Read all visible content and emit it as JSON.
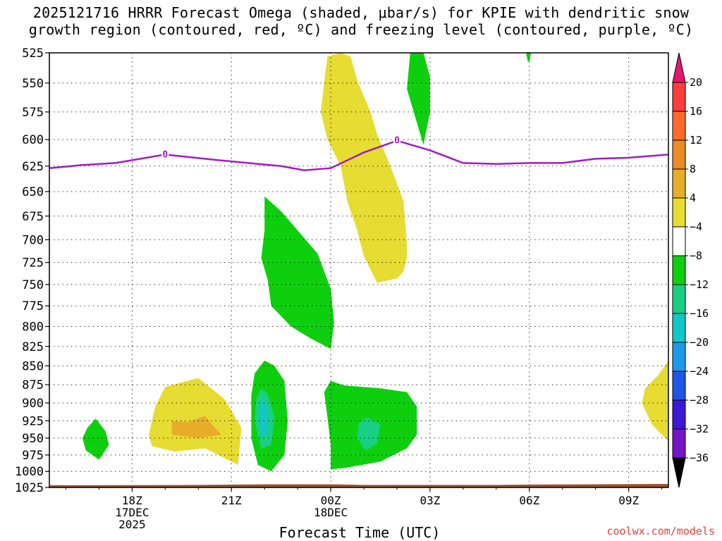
{
  "title_line1": "2025121716 HRRR Forecast Omega (shaded, μbar/s) for KPIE with dendritic snow",
  "title_line2": "growth region (contoured, red, ºC) and freezing level (contoured, purple, ºC)",
  "credit": "coolwx.com/models",
  "chart_data": {
    "type": "heatmap",
    "title": "2025121716 HRRR Forecast Omega (shaded, μbar/s) for KPIE with dendritic snow growth region (contoured, red, ºC) and freezing level (contoured, purple, ºC)",
    "xlabel": "Forecast Time (UTC)",
    "ylabel": "",
    "y_scale": "log-pressure (inverted)",
    "xlim_hours_after_00Z_17DEC": [
      15.5,
      34.2
    ],
    "ylim_hPa": [
      1025,
      525
    ],
    "grid": true,
    "y_ticks": [
      525,
      550,
      575,
      600,
      625,
      650,
      675,
      700,
      725,
      750,
      775,
      800,
      825,
      850,
      875,
      900,
      925,
      950,
      975,
      1000,
      1025
    ],
    "x_ticks": [
      {
        "hour": 18,
        "lines": [
          "18Z",
          "17DEC",
          "2025"
        ]
      },
      {
        "hour": 21,
        "lines": [
          "21Z"
        ]
      },
      {
        "hour": 24,
        "lines": [
          "00Z",
          "18DEC"
        ]
      },
      {
        "hour": 27,
        "lines": [
          "03Z"
        ]
      },
      {
        "hour": 30,
        "lines": [
          "06Z"
        ]
      },
      {
        "hour": 33,
        "lines": [
          "09Z"
        ]
      }
    ],
    "colorbar": {
      "labels": [
        "20",
        "16",
        "12",
        "8",
        "4",
        "−4",
        "−8",
        "−12",
        "−16",
        "−20",
        "−24",
        "−28",
        "−32",
        "−36"
      ],
      "bounds": [
        20,
        16,
        12,
        8,
        4,
        -4,
        -8,
        -12,
        -16,
        -20,
        -24,
        -28,
        -32,
        -36
      ],
      "colors": [
        "#ff3d3d",
        "#ff6a2a",
        "#ec8a25",
        "#e7ad2a",
        "#e6dc32",
        "#ffffff",
        "#0ecf0e",
        "#19cf83",
        "#12c7c7",
        "#1c9ae8",
        "#1f56e6",
        "#3c19d6",
        "#7614c8",
        "#a915c6",
        "#a3a3a3"
      ],
      "top_arrow_color": "#e8166f",
      "bottom_arrow_color": "#000000"
    },
    "freezing_level": {
      "label": "0",
      "color": "#a21ac9",
      "points": [
        [
          15.5,
          627
        ],
        [
          16.5,
          624
        ],
        [
          17.5,
          622
        ],
        [
          19.0,
          614
        ],
        [
          20.5,
          619
        ],
        [
          22.5,
          625
        ],
        [
          23.2,
          629
        ],
        [
          24.0,
          627
        ],
        [
          25.0,
          612
        ],
        [
          26.0,
          601
        ],
        [
          27.0,
          610
        ],
        [
          28.0,
          622
        ],
        [
          29.0,
          623
        ],
        [
          30.0,
          622
        ],
        [
          31.0,
          622
        ],
        [
          32.0,
          618
        ],
        [
          33.0,
          617
        ],
        [
          34.2,
          614
        ]
      ],
      "labels_at": [
        [
          19.0,
          614
        ],
        [
          26.0,
          601
        ]
      ]
    },
    "omega_regions": [
      {
        "class": "4 to 8",
        "color": "#e6dc32",
        "polygon": [
          [
            24.3,
            525
          ],
          [
            24.6,
            528
          ],
          [
            24.8,
            548
          ],
          [
            25.2,
            575
          ],
          [
            25.4,
            595
          ],
          [
            25.8,
            625
          ],
          [
            26.2,
            660
          ],
          [
            26.3,
            705
          ],
          [
            26.3,
            720
          ],
          [
            26.2,
            735
          ],
          [
            26.0,
            743
          ],
          [
            25.4,
            748
          ],
          [
            25.0,
            718
          ],
          [
            24.8,
            690
          ],
          [
            24.5,
            660
          ],
          [
            24.3,
            625
          ],
          [
            23.9,
            600
          ],
          [
            23.7,
            575
          ],
          [
            23.8,
            550
          ],
          [
            23.9,
            528
          ]
        ]
      },
      {
        "class": "-4 to -8",
        "color": "#0ecf0e",
        "polygon": [
          [
            26.4,
            525
          ],
          [
            26.8,
            525
          ],
          [
            27.0,
            545
          ],
          [
            27.0,
            575
          ],
          [
            26.8,
            605
          ],
          [
            26.3,
            555
          ]
        ]
      },
      {
        "class": "-4 to -8",
        "color": "#0ecf0e",
        "polygon": [
          [
            29.9,
            525
          ],
          [
            30.05,
            525
          ],
          [
            30.0,
            532
          ],
          [
            29.95,
            532
          ]
        ]
      },
      {
        "class": "-4 to -8",
        "color": "#0ecf0e",
        "polygon": [
          [
            22.0,
            655
          ],
          [
            22.5,
            670
          ],
          [
            23.6,
            715
          ],
          [
            24.0,
            755
          ],
          [
            24.1,
            795
          ],
          [
            24.0,
            828
          ],
          [
            23.4,
            815
          ],
          [
            22.8,
            800
          ],
          [
            22.2,
            775
          ],
          [
            22.1,
            745
          ],
          [
            21.9,
            720
          ],
          [
            22.0,
            690
          ]
        ]
      },
      {
        "class": "-4 to -8",
        "color": "#0ecf0e",
        "polygon": [
          [
            22.0,
            843
          ],
          [
            22.3,
            850
          ],
          [
            22.6,
            870
          ],
          [
            22.7,
            925
          ],
          [
            22.6,
            975
          ],
          [
            22.2,
            1000
          ],
          [
            21.8,
            990
          ],
          [
            21.6,
            950
          ],
          [
            21.6,
            890
          ],
          [
            21.7,
            860
          ]
        ]
      },
      {
        "class": "-8 to -12",
        "color": "#19cf83",
        "polygon": [
          [
            21.9,
            880
          ],
          [
            22.1,
            888
          ],
          [
            22.3,
            920
          ],
          [
            22.2,
            960
          ],
          [
            21.9,
            966
          ],
          [
            21.7,
            925
          ],
          [
            21.75,
            895
          ]
        ]
      },
      {
        "class": "-12 to -16",
        "color": "#12c7c7",
        "polygon": [
          [
            21.95,
            893
          ],
          [
            22.1,
            910
          ],
          [
            22.1,
            940
          ],
          [
            21.95,
            950
          ],
          [
            21.85,
            930
          ],
          [
            21.85,
            905
          ]
        ]
      },
      {
        "class": "-4 to -8",
        "color": "#0ecf0e",
        "polygon": [
          [
            24.0,
            870
          ],
          [
            24.4,
            876
          ],
          [
            25.5,
            880
          ],
          [
            26.3,
            885
          ],
          [
            26.6,
            905
          ],
          [
            26.6,
            945
          ],
          [
            26.3,
            965
          ],
          [
            25.5,
            985
          ],
          [
            24.5,
            994
          ],
          [
            24.0,
            997
          ],
          [
            24.0,
            960
          ],
          [
            23.9,
            920
          ],
          [
            23.8,
            885
          ]
        ]
      },
      {
        "class": "-8 to -12",
        "color": "#19cf83",
        "polygon": [
          [
            25.1,
            920
          ],
          [
            25.5,
            930
          ],
          [
            25.4,
            958
          ],
          [
            25.05,
            968
          ],
          [
            24.8,
            950
          ],
          [
            24.85,
            928
          ]
        ]
      },
      {
        "class": "4 to 8",
        "color": "#e6dc32",
        "polygon": [
          [
            19.0,
            878
          ],
          [
            20.0,
            866
          ],
          [
            20.8,
            895
          ],
          [
            21.3,
            935
          ],
          [
            21.2,
            990
          ],
          [
            20.2,
            965
          ],
          [
            19.3,
            970
          ],
          [
            18.6,
            962
          ],
          [
            18.5,
            945
          ],
          [
            18.7,
            905
          ]
        ]
      },
      {
        "class": "8 to 12",
        "color": "#e7ad2a",
        "polygon": [
          [
            19.7,
            927
          ],
          [
            20.2,
            918
          ],
          [
            20.5,
            935
          ],
          [
            20.7,
            945
          ],
          [
            20.0,
            950
          ],
          [
            19.2,
            945
          ],
          [
            19.2,
            925
          ]
        ]
      },
      {
        "class": "-4 to -8",
        "color": "#0ecf0e",
        "polygon": [
          [
            16.9,
            922
          ],
          [
            17.2,
            940
          ],
          [
            17.3,
            960
          ],
          [
            17.0,
            982
          ],
          [
            16.6,
            968
          ],
          [
            16.5,
            950
          ],
          [
            16.65,
            935
          ]
        ]
      },
      {
        "class": "4 to 8",
        "color": "#e6dc32",
        "polygon": [
          [
            34.2,
            843
          ],
          [
            34.2,
            955
          ],
          [
            33.7,
            930
          ],
          [
            33.4,
            900
          ],
          [
            33.5,
            880
          ],
          [
            33.9,
            862
          ]
        ]
      }
    ],
    "terrain": {
      "color": "#9e522c"
    }
  }
}
